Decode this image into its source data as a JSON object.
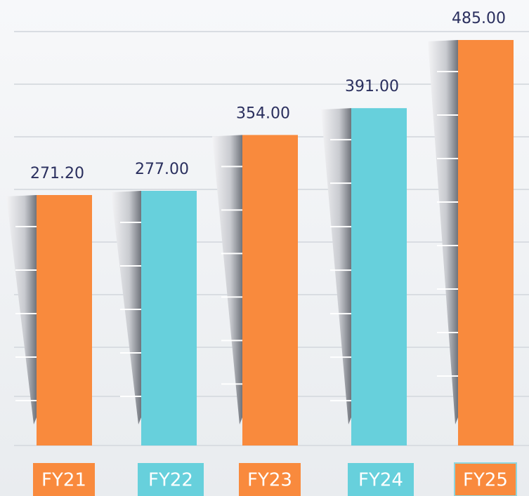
{
  "chart_data": {
    "type": "bar",
    "categories": [
      "FY21",
      "FY22",
      "FY23",
      "FY24",
      "FY25"
    ],
    "values": [
      271.2,
      277,
      354,
      391,
      485
    ],
    "value_labels": [
      "271.20",
      "277.00",
      "354.00",
      "391.00",
      "485.00"
    ],
    "colors": [
      "#f98a3d",
      "#67d0dc",
      "#f98a3d",
      "#67d0dc",
      "#f98a3d"
    ]
  }
}
